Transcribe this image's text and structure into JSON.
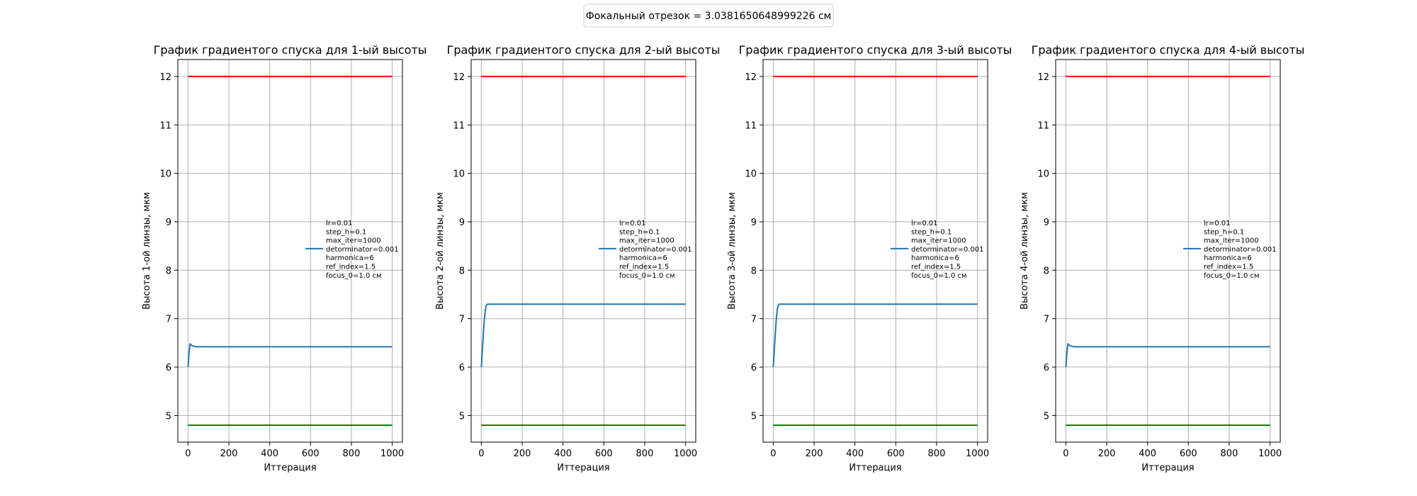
{
  "suptitle": "Фокальный отрезок = 3.0381650648999226 см",
  "colors": {
    "series": "#1f77b4",
    "upper": "#ff0000",
    "lower": "#008000",
    "grid": "#b0b0b0"
  },
  "chart_data": [
    {
      "type": "line",
      "title": "График градиентого спуска для 1-ый высоты",
      "xlabel": "Иттерация",
      "ylabel": "Высота 1-ой линзы, мкм",
      "xlim": [
        -50,
        1050
      ],
      "ylim": [
        4.45,
        12.35
      ],
      "xticks": [
        0,
        200,
        400,
        600,
        800,
        1000
      ],
      "yticks": [
        5,
        6,
        7,
        8,
        9,
        10,
        11,
        12
      ],
      "grid": true,
      "legend": {
        "placement": "center-right",
        "lines": [
          "lr=0.01",
          "step_h=0.1",
          "max_iter=1000",
          "detorminator=0.001",
          "harmonica=6",
          "ref_index=1.5",
          "focus_0=1.0 см"
        ]
      },
      "series": [
        {
          "role": "height",
          "x": [
            0,
            5,
            10,
            15,
            20,
            30,
            40,
            60,
            100,
            1000
          ],
          "y": [
            6.0,
            6.3,
            6.48,
            6.46,
            6.44,
            6.43,
            6.42,
            6.42,
            6.42,
            6.42
          ]
        },
        {
          "role": "upper_bound",
          "x": [
            0,
            1000
          ],
          "y": [
            12,
            12
          ]
        },
        {
          "role": "lower_bound",
          "x": [
            0,
            1000
          ],
          "y": [
            4.8,
            4.8
          ]
        }
      ]
    },
    {
      "type": "line",
      "title": "График градиентого спуска для 2-ый высоты",
      "xlabel": "Иттерация",
      "ylabel": "Высота 2-ой линзы, мкм",
      "xlim": [
        -50,
        1050
      ],
      "ylim": [
        4.45,
        12.35
      ],
      "xticks": [
        0,
        200,
        400,
        600,
        800,
        1000
      ],
      "yticks": [
        5,
        6,
        7,
        8,
        9,
        10,
        11,
        12
      ],
      "grid": true,
      "legend": {
        "placement": "center-right",
        "lines": [
          "lr=0.01",
          "step_h=0.1",
          "max_iter=1000",
          "detorminator=0.001",
          "harmonica=6",
          "ref_index=1.5",
          "focus_0=1.0 см"
        ]
      },
      "series": [
        {
          "role": "height",
          "x": [
            0,
            5,
            10,
            15,
            20,
            25,
            30,
            40,
            60,
            1000
          ],
          "y": [
            6.0,
            6.35,
            6.7,
            7.0,
            7.2,
            7.28,
            7.3,
            7.3,
            7.3,
            7.3
          ]
        },
        {
          "role": "upper_bound",
          "x": [
            0,
            1000
          ],
          "y": [
            12,
            12
          ]
        },
        {
          "role": "lower_bound",
          "x": [
            0,
            1000
          ],
          "y": [
            4.8,
            4.8
          ]
        }
      ]
    },
    {
      "type": "line",
      "title": "График градиентого спуска для 3-ый высоты",
      "xlabel": "Иттерация",
      "ylabel": "Высота 3-ой линзы, мкм",
      "xlim": [
        -50,
        1050
      ],
      "ylim": [
        4.45,
        12.35
      ],
      "xticks": [
        0,
        200,
        400,
        600,
        800,
        1000
      ],
      "yticks": [
        5,
        6,
        7,
        8,
        9,
        10,
        11,
        12
      ],
      "grid": true,
      "legend": {
        "placement": "center-right",
        "lines": [
          "lr=0.01",
          "step_h=0.1",
          "max_iter=1000",
          "detorminator=0.001",
          "harmonica=6",
          "ref_index=1.5",
          "focus_0=1.0 см"
        ]
      },
      "series": [
        {
          "role": "height",
          "x": [
            0,
            5,
            10,
            15,
            20,
            25,
            30,
            40,
            60,
            1000
          ],
          "y": [
            6.0,
            6.35,
            6.7,
            7.0,
            7.2,
            7.28,
            7.3,
            7.3,
            7.3,
            7.3
          ]
        },
        {
          "role": "upper_bound",
          "x": [
            0,
            1000
          ],
          "y": [
            12,
            12
          ]
        },
        {
          "role": "lower_bound",
          "x": [
            0,
            1000
          ],
          "y": [
            4.8,
            4.8
          ]
        }
      ]
    },
    {
      "type": "line",
      "title": "График градиентого спуска для 4-ый высоты",
      "xlabel": "Иттерация",
      "ylabel": "Высота 4-ой линзы, мкм",
      "xlim": [
        -50,
        1050
      ],
      "ylim": [
        4.45,
        12.35
      ],
      "xticks": [
        0,
        200,
        400,
        600,
        800,
        1000
      ],
      "yticks": [
        5,
        6,
        7,
        8,
        9,
        10,
        11,
        12
      ],
      "grid": true,
      "legend": {
        "placement": "center-right",
        "lines": [
          "lr=0.01",
          "step_h=0.1",
          "max_iter=1000",
          "detorminator=0.001",
          "harmonica=6",
          "ref_index=1.5",
          "focus_0=1.0 см"
        ]
      },
      "series": [
        {
          "role": "height",
          "x": [
            0,
            5,
            10,
            15,
            20,
            30,
            40,
            60,
            100,
            1000
          ],
          "y": [
            6.0,
            6.3,
            6.48,
            6.46,
            6.44,
            6.43,
            6.42,
            6.42,
            6.42,
            6.42
          ]
        },
        {
          "role": "upper_bound",
          "x": [
            0,
            1000
          ],
          "y": [
            12,
            12
          ]
        },
        {
          "role": "lower_bound",
          "x": [
            0,
            1000
          ],
          "y": [
            4.8,
            4.8
          ]
        }
      ]
    }
  ]
}
